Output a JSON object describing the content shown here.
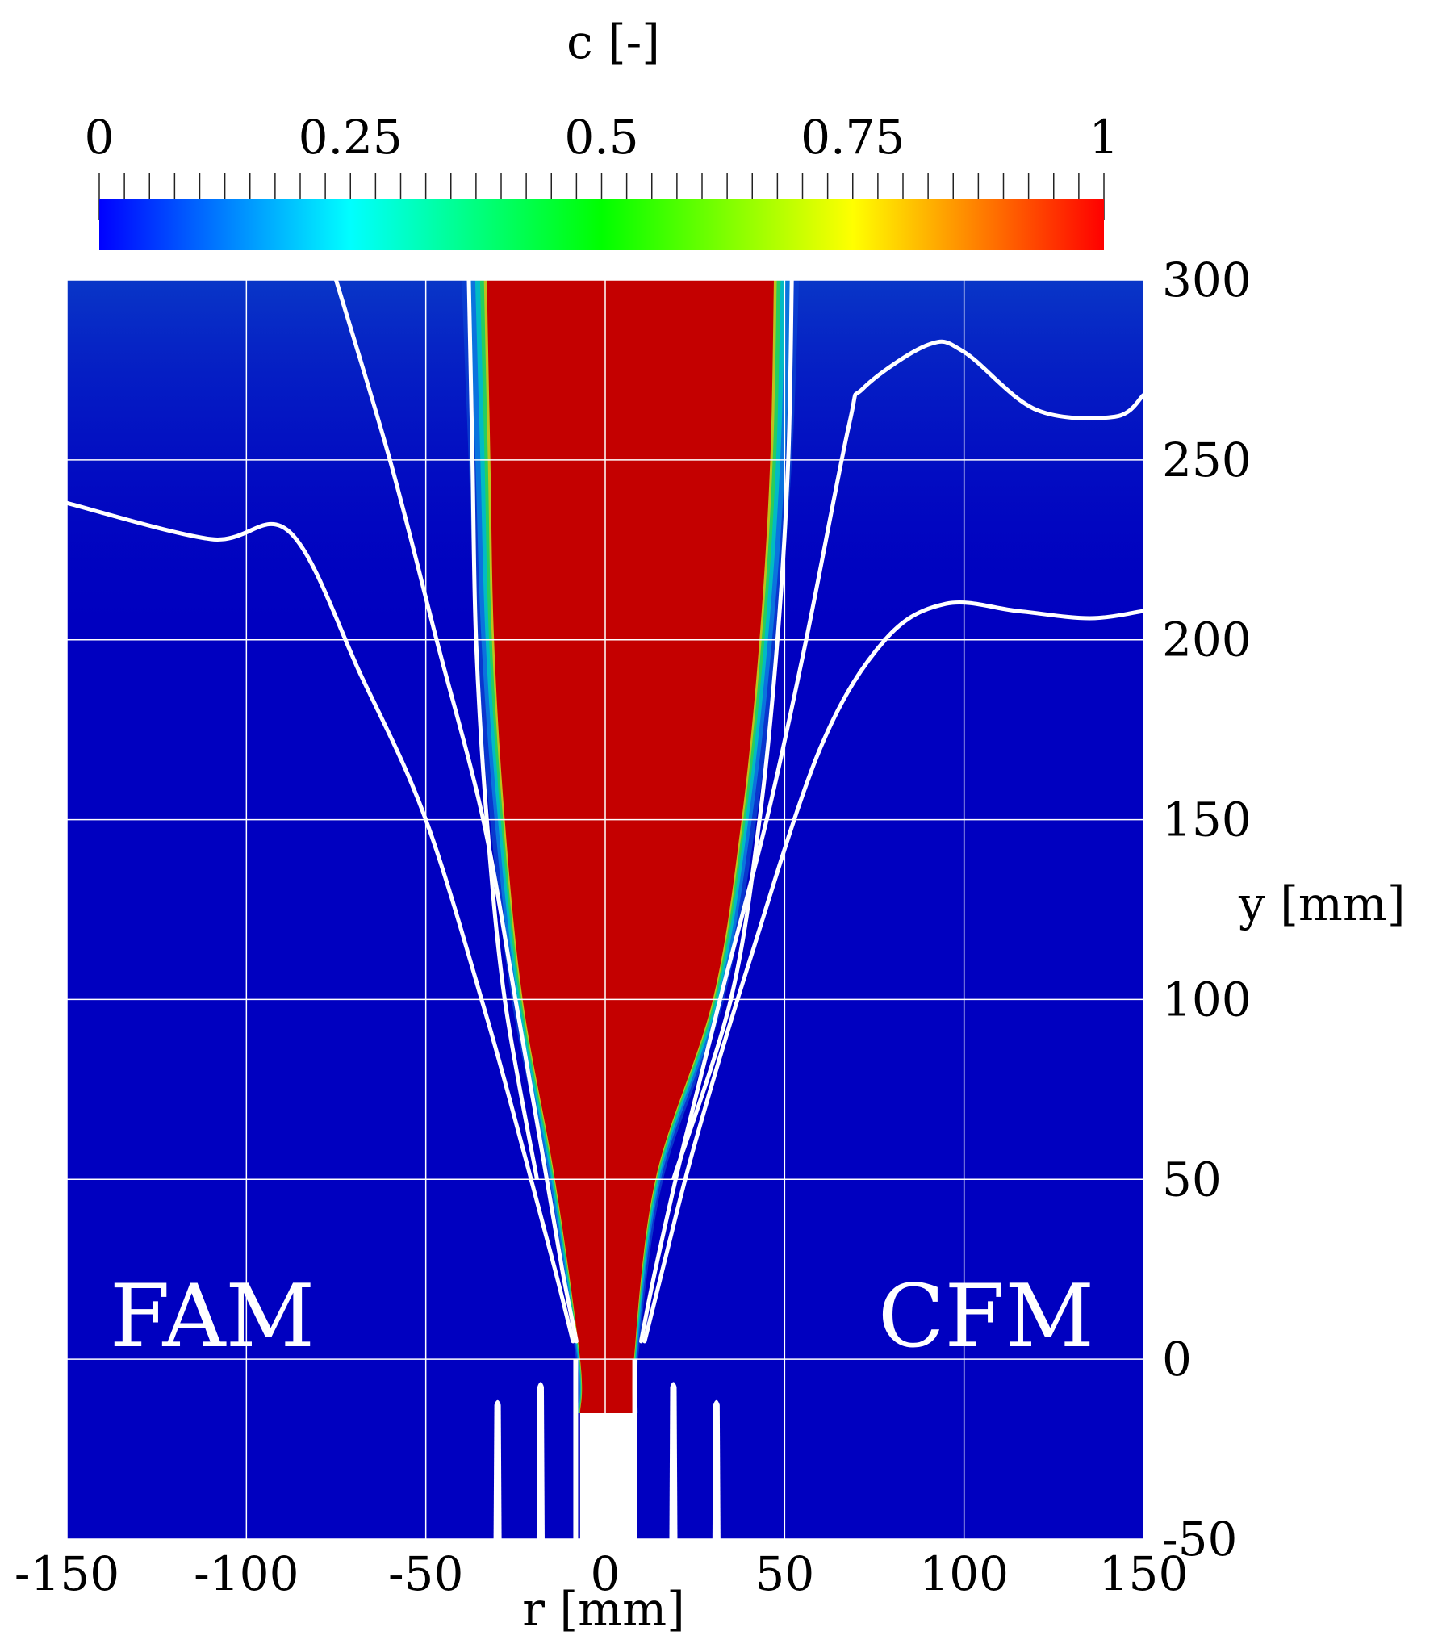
{
  "chart_data": {
    "type": "heatmap",
    "colorbar": {
      "title": "c [-]",
      "ticks": [
        0,
        0.25,
        0.5,
        0.75,
        1
      ],
      "tick_labels": [
        "0",
        "0.25",
        "0.5",
        "0.75",
        "1"
      ],
      "range": [
        0,
        1
      ],
      "placement": "top",
      "colormap": "rainbow-blue-to-red"
    },
    "xlabel": "r [mm]",
    "ylabel": "y [mm]",
    "xlim": [
      -150,
      150
    ],
    "ylim": [
      -50,
      300
    ],
    "xticks": [
      -150,
      -100,
      -50,
      0,
      50,
      100,
      150
    ],
    "xtick_labels": [
      "-150",
      "-100",
      "-50",
      "0",
      "50",
      "100",
      "150"
    ],
    "yticks": [
      -50,
      0,
      50,
      100,
      150,
      200,
      250,
      300
    ],
    "ytick_labels": [
      "-50",
      "0",
      "50",
      "100",
      "150",
      "200",
      "250",
      "300"
    ],
    "grid": true,
    "annotations": [
      {
        "text": "FAM",
        "side": "left"
      },
      {
        "text": "CFM",
        "side": "right"
      }
    ],
    "colors": {
      "background_field": "#0000c0",
      "flame_core": "#c40000",
      "contour_lines": "#ffffff",
      "grid": "#ffffff"
    },
    "flame_core_half_width": {
      "y": [
        -15,
        0,
        50,
        100,
        150,
        200,
        250,
        300
      ],
      "left_r": [
        -7,
        -7,
        -14,
        -23,
        -28,
        -31,
        -32,
        -33
      ],
      "right_r": [
        8,
        8,
        14,
        30,
        38,
        43,
        46,
        47
      ]
    },
    "contour_lines": [
      {
        "side": "left",
        "r": [
          -8,
          -12,
          -18,
          -25,
          -34,
          -47,
          -60,
          -75
        ],
        "y": [
          5,
          25,
          60,
          100,
          150,
          200,
          250,
          300
        ]
      },
      {
        "side": "left",
        "r": [
          -9,
          -14,
          -22,
          -33,
          -50,
          -68,
          -88,
          -110,
          -150
        ],
        "y": [
          5,
          25,
          55,
          95,
          150,
          190,
          230,
          228,
          238
        ]
      },
      {
        "side": "right",
        "r": [
          10,
          14,
          22,
          32,
          45,
          56,
          68,
          72,
          90,
          100,
          120,
          142,
          150
        ],
        "y": [
          5,
          25,
          60,
          100,
          150,
          200,
          260,
          270,
          282,
          280,
          264,
          262,
          268
        ]
      },
      {
        "side": "right",
        "r": [
          11,
          16,
          25,
          40,
          60,
          78,
          95,
          115,
          135,
          150
        ],
        "y": [
          5,
          25,
          60,
          110,
          170,
          200,
          210,
          208,
          206,
          208
        ]
      }
    ],
    "nozzle_walls_r": [
      -30,
      -18,
      -8,
      8,
      19,
      31
    ],
    "nozzle_exit_y": 0
  }
}
